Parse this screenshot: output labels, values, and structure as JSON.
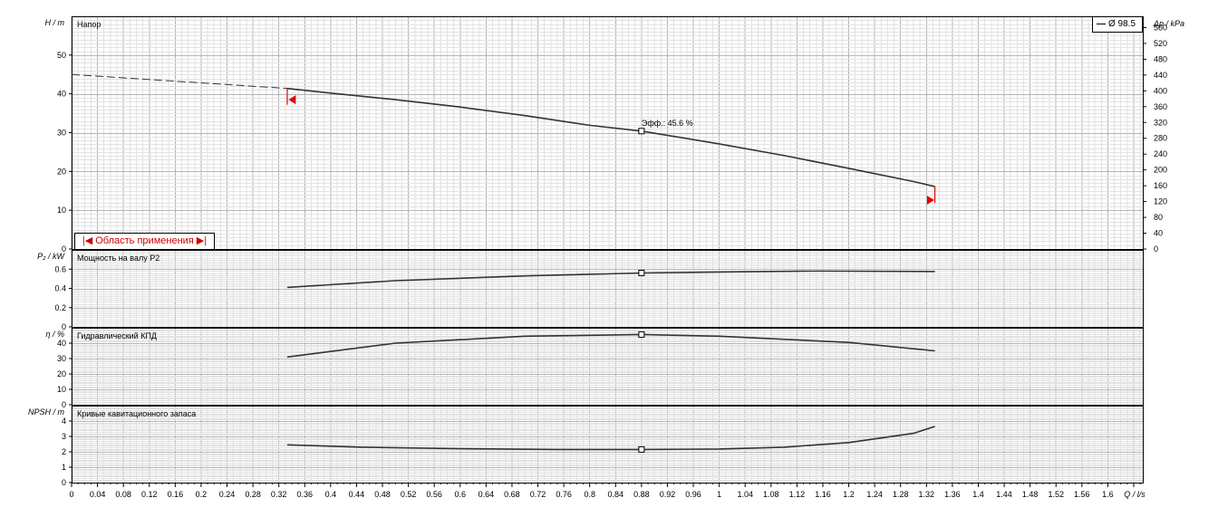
{
  "legend": {
    "label": "Ø 98.5"
  },
  "range_label": "|◀ Область применения ▶|",
  "colors": {
    "curve": "#333333",
    "marker_red": "#e60000",
    "grid_minor": "#e2e2e2",
    "grid_major": "#b5b5b5"
  },
  "chart_data": [
    {
      "type": "line",
      "title": "Напор",
      "ylabel": "H / m",
      "ylim": [
        0,
        60
      ],
      "yticks": [
        0,
        10,
        20,
        30,
        40,
        50
      ],
      "y2label": "Δp / kPa",
      "y2lim": [
        0,
        588.6
      ],
      "y2ticks": [
        0,
        40,
        80,
        120,
        160,
        200,
        240,
        280,
        320,
        360,
        400,
        440,
        480,
        520,
        560
      ],
      "series": [
        {
          "name": "Ø 98.5",
          "x": [
            0.333,
            0.4,
            0.5,
            0.6,
            0.7,
            0.8,
            0.88,
            1.0,
            1.1,
            1.2,
            1.3,
            1.333
          ],
          "y": [
            41.4,
            40.2,
            38.5,
            36.6,
            34.4,
            31.9,
            30.4,
            27.1,
            24.1,
            20.8,
            17.4,
            16.1
          ]
        }
      ],
      "extrapolation": {
        "x": [
          0,
          0.333
        ],
        "y": [
          45.0,
          41.4
        ]
      },
      "range_markers": [
        {
          "x": 0.342,
          "y": 38.5
        },
        {
          "x": 1.325,
          "y": 12.6
        }
      ],
      "duty_point": {
        "x": 0.88,
        "y": 30.4,
        "label": "Эфф.: 45.6 %"
      }
    },
    {
      "type": "line",
      "title": "Мощность на валу P2",
      "ylabel": "P₂ / kW",
      "ylim": [
        0,
        0.8
      ],
      "yticks": [
        0,
        0.2,
        0.4,
        0.6
      ],
      "series": [
        {
          "name": "Ø 98.5",
          "x": [
            0.333,
            0.5,
            0.7,
            0.88,
            1.0,
            1.15,
            1.333
          ],
          "y": [
            0.41,
            0.48,
            0.53,
            0.56,
            0.57,
            0.58,
            0.575
          ]
        }
      ],
      "duty_point": {
        "x": 0.88,
        "y": 0.56
      }
    },
    {
      "type": "line",
      "title": "Гидравлический КПД",
      "ylabel": "η / %",
      "ylim": [
        0,
        50
      ],
      "yticks": [
        0,
        10,
        20,
        30,
        40
      ],
      "series": [
        {
          "name": "Ø 98.5",
          "x": [
            0.333,
            0.5,
            0.7,
            0.88,
            1.0,
            1.2,
            1.333
          ],
          "y": [
            31.0,
            40.0,
            44.5,
            45.6,
            44.5,
            40.5,
            35.0
          ]
        }
      ],
      "duty_point": {
        "x": 0.88,
        "y": 45.6
      }
    },
    {
      "type": "line",
      "title": "Кривые кавитационного запаса",
      "ylabel": "NPSH / m",
      "ylim": [
        0,
        5
      ],
      "yticks": [
        0,
        1,
        2,
        3,
        4
      ],
      "series": [
        {
          "name": "Ø 98.5",
          "x": [
            0.333,
            0.45,
            0.6,
            0.75,
            0.88,
            1.0,
            1.1,
            1.2,
            1.3,
            1.333
          ],
          "y": [
            2.45,
            2.3,
            2.2,
            2.15,
            2.15,
            2.18,
            2.3,
            2.6,
            3.2,
            3.65
          ]
        }
      ],
      "duty_point": {
        "x": 0.88,
        "y": 2.15
      }
    }
  ],
  "x_axis": {
    "label": "Q / l/s",
    "xlim": [
      0,
      1.654
    ],
    "ticks": [
      "0",
      "0.04",
      "0.08",
      "0.12",
      "0.16",
      "0.2",
      "0.24",
      "0.28",
      "0.32",
      "0.36",
      "0.4",
      "0.44",
      "0.48",
      "0.52",
      "0.56",
      "0.6",
      "0.64",
      "0.68",
      "0.72",
      "0.76",
      "0.8",
      "0.84",
      "0.88",
      "0.92",
      "0.96",
      "1",
      "1.04",
      "1.08",
      "1.12",
      "1.16",
      "1.2",
      "1.24",
      "1.28",
      "1.32",
      "1.36",
      "1.4",
      "1.44",
      "1.48",
      "1.52",
      "1.56",
      "1.6"
    ]
  }
}
